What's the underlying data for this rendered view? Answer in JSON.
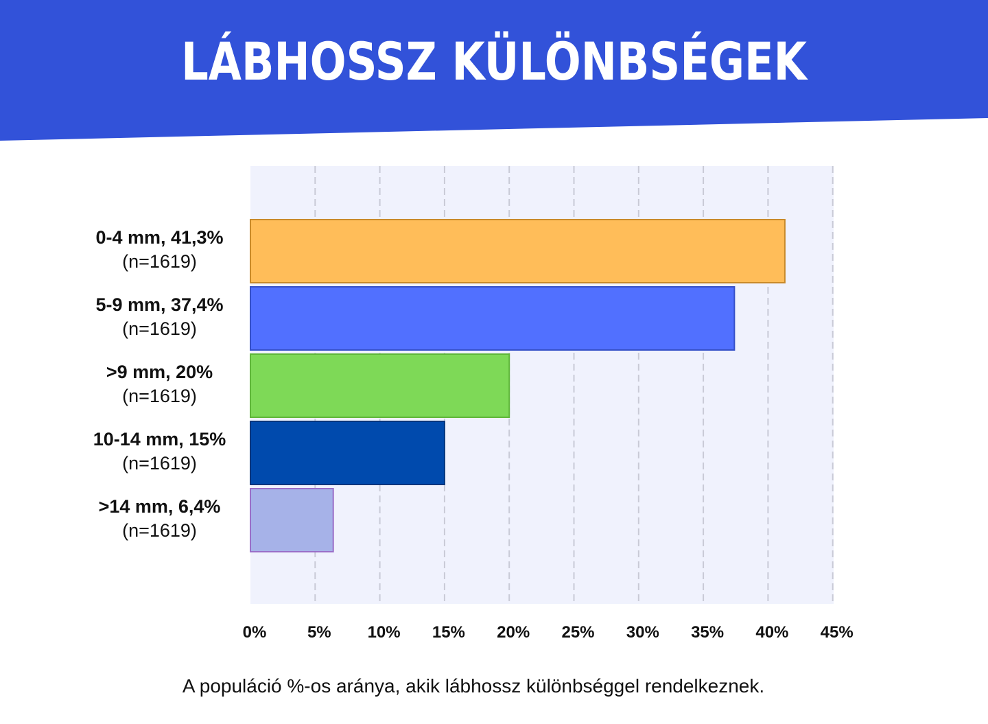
{
  "title": "LÁBHOSSZ KÜLÖNBSÉGEK",
  "colors": {
    "banner": "#3252D9",
    "plot_background": "#F0F2FD",
    "grid": "#C9CAD6"
  },
  "chart_data": {
    "type": "bar",
    "orientation": "horizontal",
    "categories": [
      "0-4 mm, 41,3%",
      "5-9 mm, 37,4%",
      ">9 mm, 20%",
      "10-14 mm, 15%",
      ">14 mm, 6,4%"
    ],
    "category_sublabels": [
      "(n=1619)",
      "(n=1619)",
      "(n=1619)",
      "(n=1619)",
      "(n=1619)"
    ],
    "values": [
      41.3,
      37.4,
      20,
      15,
      6.4
    ],
    "bar_colors": [
      "#FFBD59",
      "#5170FF",
      "#7ED957",
      "#004AAD",
      "#A6B2E8"
    ],
    "bar_borders": [
      "#C98A2A",
      "#3550C8",
      "#5FB63A",
      "#00357D",
      "#9A6FC8"
    ],
    "x_ticks": [
      0,
      5,
      10,
      15,
      20,
      25,
      30,
      35,
      40,
      45
    ],
    "x_tick_labels": [
      "0%",
      "5%",
      "10%",
      "15%",
      "20%",
      "25%",
      "30%",
      "35%",
      "40%",
      "45%"
    ],
    "xlim": [
      0,
      45
    ],
    "grid": "vertical-dashed",
    "xlabel": "A populáció %-os aránya, akik lábhossz különbséggel rendelkeznek.",
    "title": "LÁBHOSSZ KÜLÖNBSÉGEK"
  }
}
